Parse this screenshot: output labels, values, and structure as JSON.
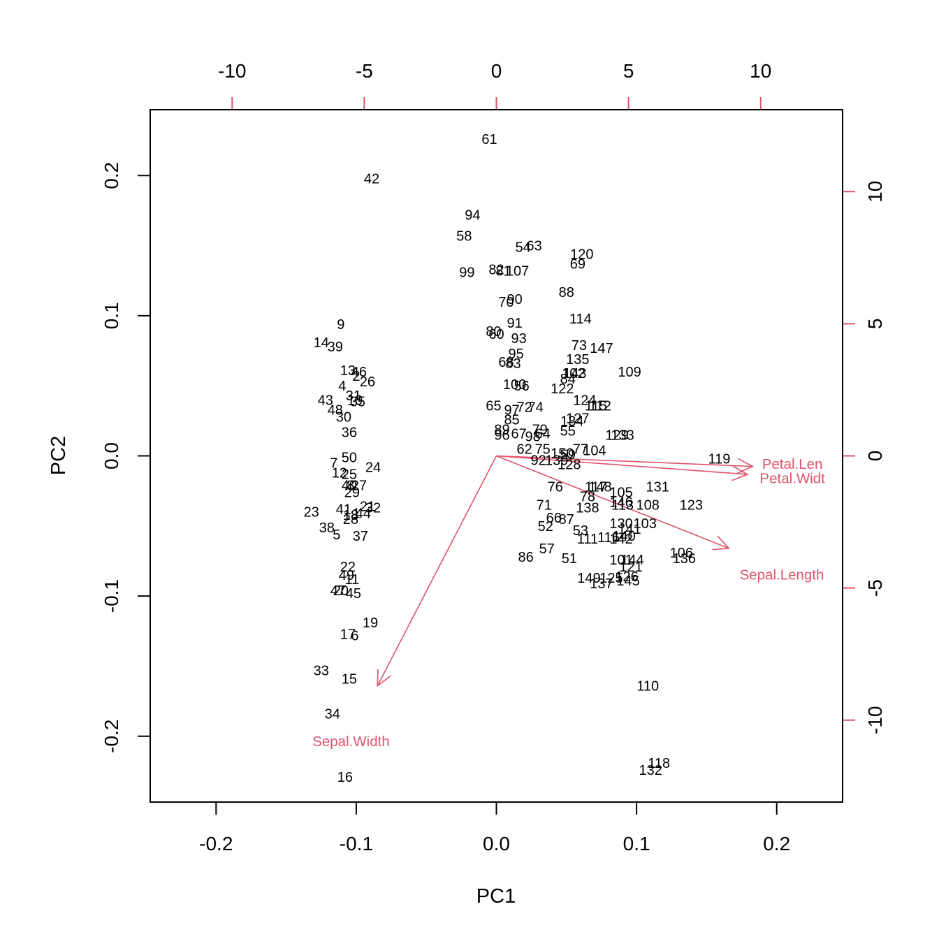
{
  "chart_data": {
    "type": "scatter",
    "subtype": "biplot",
    "xlabel": "PC1",
    "ylabel": "PC2",
    "xlim": [
      -0.247,
      0.247
    ],
    "ylim": [
      -0.247,
      0.247
    ],
    "x_ticks": [
      "-0.2",
      "-0.1",
      "0.0",
      "0.1",
      "0.2"
    ],
    "y_ticks": [
      "-0.2",
      "-0.1",
      "0.0",
      "0.1",
      "0.2"
    ],
    "secondary_xlim": [
      -13.1,
      13.1
    ],
    "secondary_ylim": [
      -13.1,
      13.1
    ],
    "secondary_x_ticks": [
      "-10",
      "-5",
      "0",
      "5",
      "10"
    ],
    "secondary_y_ticks": [
      "-10",
      "-5",
      "0",
      "5",
      "10"
    ],
    "colors": {
      "points": "#000000",
      "arrows": "#df536b",
      "frame": "#000000"
    },
    "points": [
      {
        "label": "61",
        "x": -0.005,
        "y": 0.226
      },
      {
        "label": "42",
        "x": -0.089,
        "y": 0.198
      },
      {
        "label": "94",
        "x": -0.017,
        "y": 0.172
      },
      {
        "label": "58",
        "x": -0.023,
        "y": 0.157
      },
      {
        "label": "54",
        "x": 0.019,
        "y": 0.149
      },
      {
        "label": "63",
        "x": 0.027,
        "y": 0.15
      },
      {
        "label": "120",
        "x": 0.061,
        "y": 0.144
      },
      {
        "label": "69",
        "x": 0.058,
        "y": 0.137
      },
      {
        "label": "99",
        "x": -0.021,
        "y": 0.131
      },
      {
        "label": "82",
        "x": 0.0,
        "y": 0.133
      },
      {
        "label": "81",
        "x": 0.005,
        "y": 0.132
      },
      {
        "label": "107",
        "x": 0.015,
        "y": 0.132
      },
      {
        "label": "88",
        "x": 0.05,
        "y": 0.117
      },
      {
        "label": "70",
        "x": 0.007,
        "y": 0.11
      },
      {
        "label": "90",
        "x": 0.013,
        "y": 0.112
      },
      {
        "label": "114",
        "x": 0.06,
        "y": 0.098
      },
      {
        "label": "9",
        "x": -0.111,
        "y": 0.094
      },
      {
        "label": "91",
        "x": 0.013,
        "y": 0.095
      },
      {
        "label": "80",
        "x": -0.002,
        "y": 0.089
      },
      {
        "label": "60",
        "x": 0.0,
        "y": 0.087
      },
      {
        "label": "93",
        "x": 0.016,
        "y": 0.084
      },
      {
        "label": "14",
        "x": -0.125,
        "y": 0.081
      },
      {
        "label": "39",
        "x": -0.115,
        "y": 0.078
      },
      {
        "label": "73",
        "x": 0.059,
        "y": 0.079
      },
      {
        "label": "147",
        "x": 0.075,
        "y": 0.077
      },
      {
        "label": "95",
        "x": 0.014,
        "y": 0.073
      },
      {
        "label": "135",
        "x": 0.058,
        "y": 0.069
      },
      {
        "label": "68",
        "x": 0.007,
        "y": 0.067
      },
      {
        "label": "83",
        "x": 0.012,
        "y": 0.066
      },
      {
        "label": "109",
        "x": 0.095,
        "y": 0.06
      },
      {
        "label": "13",
        "x": -0.106,
        "y": 0.061
      },
      {
        "label": "46",
        "x": -0.098,
        "y": 0.06
      },
      {
        "label": "2",
        "x": -0.1,
        "y": 0.057
      },
      {
        "label": "102",
        "x": 0.055,
        "y": 0.059
      },
      {
        "label": "143",
        "x": 0.056,
        "y": 0.059
      },
      {
        "label": "26",
        "x": -0.092,
        "y": 0.053
      },
      {
        "label": "84",
        "x": 0.051,
        "y": 0.055
      },
      {
        "label": "4",
        "x": -0.11,
        "y": 0.05
      },
      {
        "label": "100",
        "x": 0.013,
        "y": 0.051
      },
      {
        "label": "56",
        "x": 0.018,
        "y": 0.05
      },
      {
        "label": "122",
        "x": 0.047,
        "y": 0.048
      },
      {
        "label": "31",
        "x": -0.102,
        "y": 0.043
      },
      {
        "label": "43",
        "x": -0.122,
        "y": 0.04
      },
      {
        "label": "10",
        "x": -0.101,
        "y": 0.04
      },
      {
        "label": "35",
        "x": -0.099,
        "y": 0.039
      },
      {
        "label": "124",
        "x": 0.063,
        "y": 0.04
      },
      {
        "label": "115",
        "x": 0.071,
        "y": 0.036
      },
      {
        "label": "112",
        "x": 0.074,
        "y": 0.036
      },
      {
        "label": "65",
        "x": -0.002,
        "y": 0.036
      },
      {
        "label": "72",
        "x": 0.02,
        "y": 0.035
      },
      {
        "label": "74",
        "x": 0.028,
        "y": 0.035
      },
      {
        "label": "97",
        "x": 0.011,
        "y": 0.033
      },
      {
        "label": "48",
        "x": -0.115,
        "y": 0.033
      },
      {
        "label": "30",
        "x": -0.109,
        "y": 0.028
      },
      {
        "label": "85",
        "x": 0.011,
        "y": 0.026
      },
      {
        "label": "127",
        "x": 0.058,
        "y": 0.027
      },
      {
        "label": "134",
        "x": 0.054,
        "y": 0.025
      },
      {
        "label": "89",
        "x": 0.004,
        "y": 0.019
      },
      {
        "label": "79",
        "x": 0.031,
        "y": 0.019
      },
      {
        "label": "55",
        "x": 0.051,
        "y": 0.018
      },
      {
        "label": "96",
        "x": 0.004,
        "y": 0.015
      },
      {
        "label": "67",
        "x": 0.016,
        "y": 0.016
      },
      {
        "label": "64",
        "x": 0.033,
        "y": 0.016
      },
      {
        "label": "98",
        "x": 0.026,
        "y": 0.014
      },
      {
        "label": "129",
        "x": 0.086,
        "y": 0.015
      },
      {
        "label": "133",
        "x": 0.09,
        "y": 0.015
      },
      {
        "label": "36",
        "x": -0.105,
        "y": 0.017
      },
      {
        "label": "62",
        "x": 0.02,
        "y": 0.005
      },
      {
        "label": "75",
        "x": 0.033,
        "y": 0.005
      },
      {
        "label": "150",
        "x": 0.047,
        "y": 0.002
      },
      {
        "label": "77",
        "x": 0.06,
        "y": 0.005
      },
      {
        "label": "104",
        "x": 0.07,
        "y": 0.004
      },
      {
        "label": "59",
        "x": 0.051,
        "y": 0.001
      },
      {
        "label": "92",
        "x": 0.03,
        "y": -0.003
      },
      {
        "label": "139",
        "x": 0.043,
        "y": -0.003
      },
      {
        "label": "128",
        "x": 0.052,
        "y": -0.006
      },
      {
        "label": "119",
        "x": 0.159,
        "y": -0.002
      },
      {
        "label": "50",
        "x": -0.105,
        "y": -0.001
      },
      {
        "label": "7",
        "x": -0.116,
        "y": -0.005
      },
      {
        "label": "24",
        "x": -0.088,
        "y": -0.008
      },
      {
        "label": "12",
        "x": -0.112,
        "y": -0.012
      },
      {
        "label": "25",
        "x": -0.105,
        "y": -0.013
      },
      {
        "label": "76",
        "x": 0.042,
        "y": -0.022
      },
      {
        "label": "117",
        "x": 0.071,
        "y": -0.022
      },
      {
        "label": "148",
        "x": 0.074,
        "y": -0.022
      },
      {
        "label": "131",
        "x": 0.115,
        "y": -0.022
      },
      {
        "label": "40",
        "x": -0.105,
        "y": -0.021
      },
      {
        "label": "8",
        "x": -0.104,
        "y": -0.021
      },
      {
        "label": "27",
        "x": -0.098,
        "y": -0.021
      },
      {
        "label": "105",
        "x": 0.089,
        "y": -0.026
      },
      {
        "label": "78",
        "x": 0.065,
        "y": -0.029
      },
      {
        "label": "29",
        "x": -0.103,
        "y": -0.026
      },
      {
        "label": "71",
        "x": 0.034,
        "y": -0.035
      },
      {
        "label": "146",
        "x": 0.089,
        "y": -0.033
      },
      {
        "label": "113",
        "x": 0.09,
        "y": -0.035
      },
      {
        "label": "108",
        "x": 0.108,
        "y": -0.035
      },
      {
        "label": "123",
        "x": 0.139,
        "y": -0.035
      },
      {
        "label": "138",
        "x": 0.065,
        "y": -0.037
      },
      {
        "label": "21",
        "x": -0.092,
        "y": -0.036
      },
      {
        "label": "32",
        "x": -0.088,
        "y": -0.037
      },
      {
        "label": "23",
        "x": -0.132,
        "y": -0.04
      },
      {
        "label": "41",
        "x": -0.109,
        "y": -0.038
      },
      {
        "label": "18",
        "x": -0.104,
        "y": -0.042
      },
      {
        "label": "44",
        "x": -0.095,
        "y": -0.041
      },
      {
        "label": "1",
        "x": -0.1,
        "y": -0.041
      },
      {
        "label": "28",
        "x": -0.104,
        "y": -0.045
      },
      {
        "label": "66",
        "x": 0.041,
        "y": -0.044
      },
      {
        "label": "87",
        "x": 0.05,
        "y": -0.045
      },
      {
        "label": "52",
        "x": 0.035,
        "y": -0.05
      },
      {
        "label": "130",
        "x": 0.089,
        "y": -0.048
      },
      {
        "label": "103",
        "x": 0.106,
        "y": -0.048
      },
      {
        "label": "38",
        "x": -0.121,
        "y": -0.051
      },
      {
        "label": "53",
        "x": 0.06,
        "y": -0.053
      },
      {
        "label": "141",
        "x": 0.095,
        "y": -0.052
      },
      {
        "label": "5",
        "x": -0.114,
        "y": -0.056
      },
      {
        "label": "37",
        "x": -0.097,
        "y": -0.057
      },
      {
        "label": "111",
        "x": 0.065,
        "y": -0.059
      },
      {
        "label": "116",
        "x": 0.08,
        "y": -0.058
      },
      {
        "label": "140",
        "x": 0.091,
        "y": -0.057
      },
      {
        "label": "142",
        "x": 0.089,
        "y": -0.059
      },
      {
        "label": "57",
        "x": 0.036,
        "y": -0.066
      },
      {
        "label": "86",
        "x": 0.021,
        "y": -0.072
      },
      {
        "label": "51",
        "x": 0.052,
        "y": -0.073
      },
      {
        "label": "106",
        "x": 0.132,
        "y": -0.069
      },
      {
        "label": "136",
        "x": 0.134,
        "y": -0.073
      },
      {
        "label": "101",
        "x": 0.089,
        "y": -0.074
      },
      {
        "label": "144",
        "x": 0.097,
        "y": -0.074
      },
      {
        "label": "22",
        "x": -0.106,
        "y": -0.079
      },
      {
        "label": "121",
        "x": 0.096,
        "y": -0.079
      },
      {
        "label": "49",
        "x": -0.107,
        "y": -0.085
      },
      {
        "label": "11",
        "x": -0.103,
        "y": -0.088
      },
      {
        "label": "149",
        "x": 0.066,
        "y": -0.087
      },
      {
        "label": "125",
        "x": 0.082,
        "y": -0.087
      },
      {
        "label": "126",
        "x": 0.093,
        "y": -0.086
      },
      {
        "label": "145",
        "x": 0.094,
        "y": -0.089
      },
      {
        "label": "137",
        "x": 0.075,
        "y": -0.091
      },
      {
        "label": "47",
        "x": -0.113,
        "y": -0.096
      },
      {
        "label": "20",
        "x": -0.111,
        "y": -0.096
      },
      {
        "label": "45",
        "x": -0.102,
        "y": -0.098
      },
      {
        "label": "19",
        "x": -0.09,
        "y": -0.119
      },
      {
        "label": "17",
        "x": -0.106,
        "y": -0.127
      },
      {
        "label": "6",
        "x": -0.101,
        "y": -0.128
      },
      {
        "label": "33",
        "x": -0.125,
        "y": -0.153
      },
      {
        "label": "15",
        "x": -0.105,
        "y": -0.159
      },
      {
        "label": "110",
        "x": 0.108,
        "y": -0.164
      },
      {
        "label": "34",
        "x": -0.117,
        "y": -0.184
      },
      {
        "label": "118",
        "x": 0.116,
        "y": -0.219
      },
      {
        "label": "132",
        "x": 0.11,
        "y": -0.224
      },
      {
        "label": "16",
        "x": -0.108,
        "y": -0.229
      }
    ],
    "loadings": [
      {
        "name": "Sepal.Length",
        "x": 8.8,
        "y": -3.5
      },
      {
        "name": "Sepal.Width",
        "x": -4.5,
        "y": -8.7
      },
      {
        "name": "Petal.Length",
        "x": 9.7,
        "y": -0.4
      },
      {
        "name": "Petal.Width",
        "x": 9.5,
        "y": -0.7
      }
    ],
    "loading_labels": [
      {
        "text": "Sepal.Length",
        "x": 10.8,
        "y": -4.5
      },
      {
        "text": "Sepal.Width",
        "x": -5.5,
        "y": -10.8
      },
      {
        "text": "Petal.Len",
        "x": 11.2,
        "y": -0.3
      },
      {
        "text": "Petal.Widt",
        "x": 11.2,
        "y": -0.85
      }
    ]
  }
}
